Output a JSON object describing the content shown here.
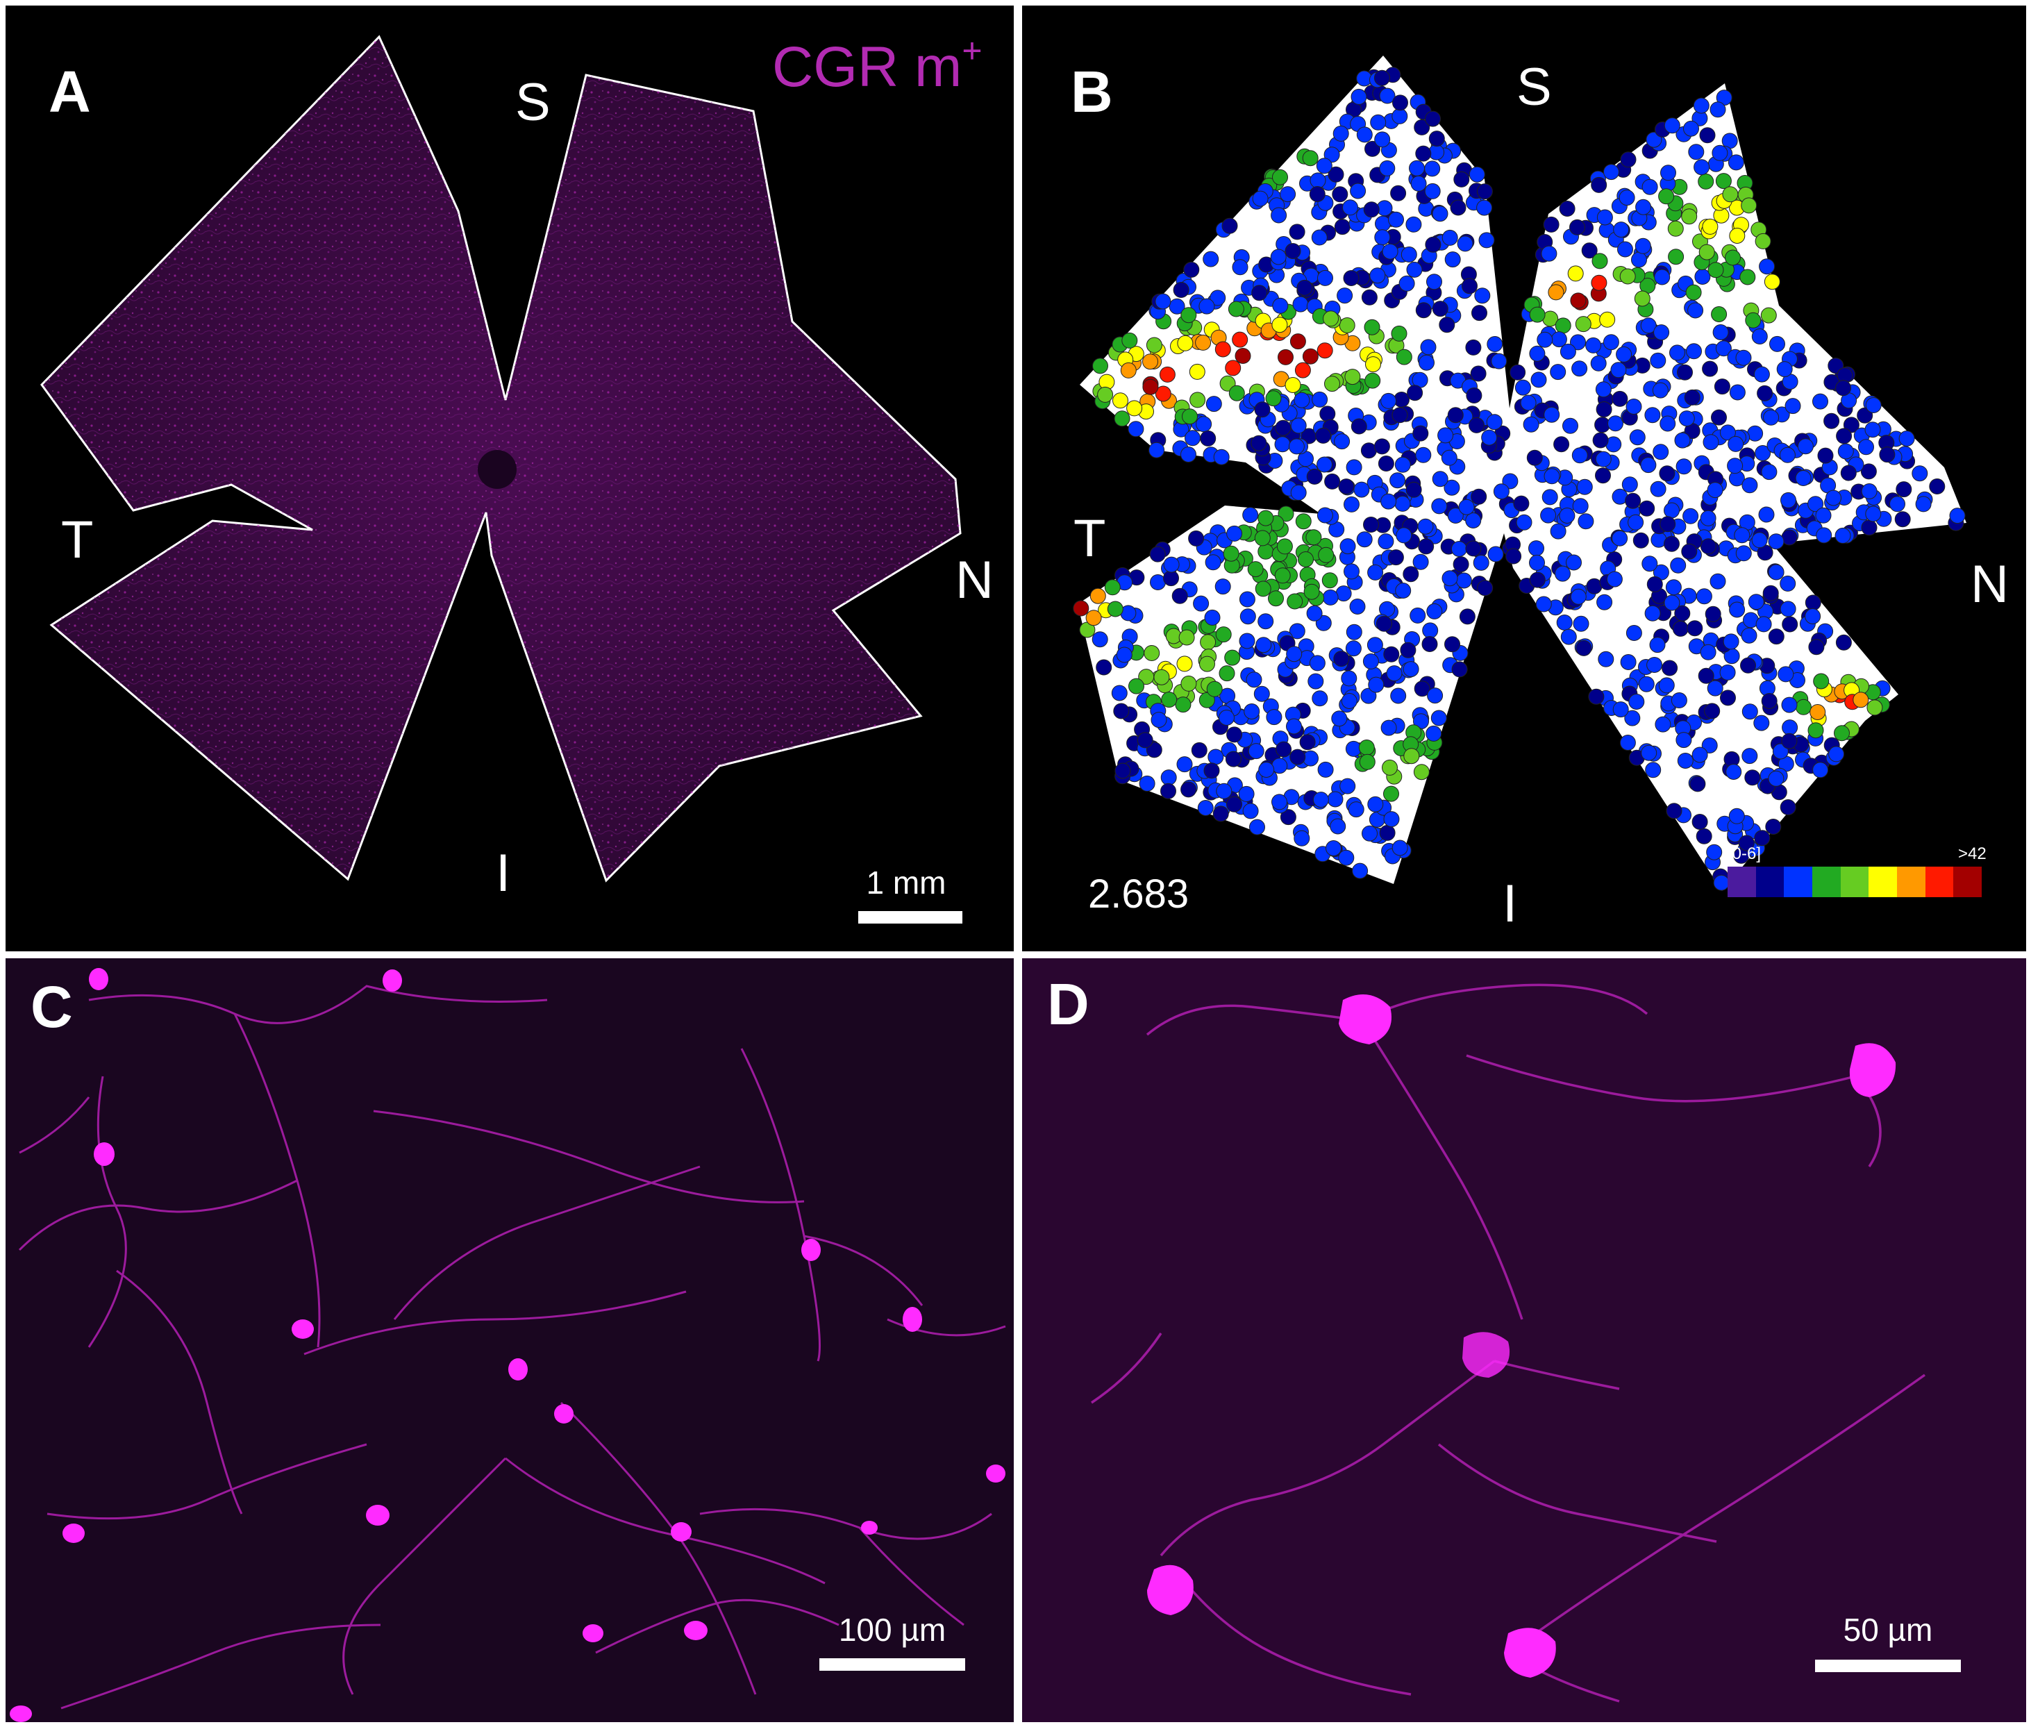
{
  "panels": {
    "a": {
      "letter": "A",
      "marker": "CGR m",
      "marker_sup": "+",
      "orientation": {
        "superior": "S",
        "temporal": "T",
        "nasal": "N",
        "inferior": "I"
      },
      "scale_bar": "1 mm"
    },
    "b": {
      "letter": "B",
      "orientation": {
        "superior": "S",
        "temporal": "T",
        "nasal": "N",
        "inferior": "I"
      },
      "count_value": "2.683",
      "legend": {
        "min_label": "[0-6]",
        "max_label": ">42",
        "colors": [
          "#4b1b9e",
          "#00008b",
          "#0033ff",
          "#22aa22",
          "#66cc22",
          "#ffff00",
          "#ff9900",
          "#ff1a00",
          "#a30000"
        ]
      }
    },
    "c": {
      "letter": "C",
      "scale_bar": "100 µm"
    },
    "d": {
      "letter": "D",
      "scale_bar": "50 µm"
    }
  },
  "colors": {
    "magenta": "#e21ee2",
    "dim_magenta": "#5a1060",
    "background": "#000000"
  }
}
